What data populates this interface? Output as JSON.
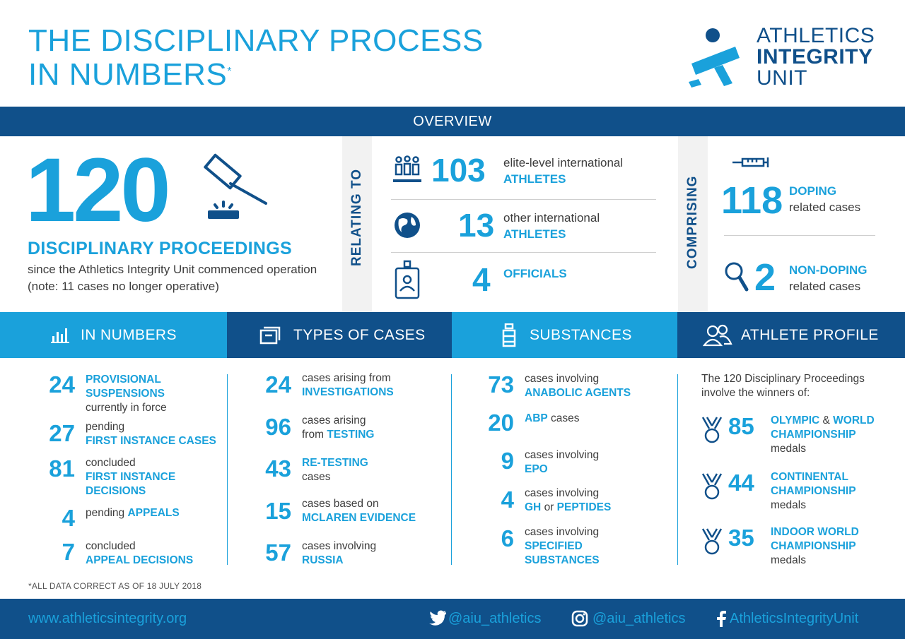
{
  "header": {
    "title_line1": "THE DISCIPLINARY PROCESS",
    "title_line2": "IN NUMBERS",
    "title_mark": "*",
    "logo_line1": "ATHLETICS",
    "logo_line2": "INTEGRITY",
    "logo_line3": "UNIT"
  },
  "overview": {
    "label": "OVERVIEW",
    "total": "120",
    "total_label": "DISCIPLINARY PROCEEDINGS",
    "total_desc": "since the Athletics Integrity Unit commenced operation (note: 11 cases no longer operative)",
    "relating_label": "RELATING TO",
    "relating": [
      {
        "icon": "athletes-icon",
        "number": "103",
        "line1": "elite-level international",
        "line2": "ATHLETES"
      },
      {
        "icon": "globe-icon",
        "number": "13",
        "line1": "other international",
        "line2": "ATHLETES"
      },
      {
        "icon": "id-badge-icon",
        "number": "4",
        "line1": "",
        "line2": "OFFICIALS"
      }
    ],
    "comprising_label": "COMPRISING",
    "comprising": [
      {
        "icon": "syringe-icon",
        "number": "118",
        "line1": "DOPING",
        "line2": "related cases"
      },
      {
        "icon": "magnifier-icon",
        "number": "2",
        "line1": "NON-DOPING",
        "line2": "related cases"
      }
    ]
  },
  "sections": {
    "in_numbers": "IN NUMBERS",
    "types": "TYPES OF CASES",
    "substances": "SUBSTANCES",
    "profile": "ATHLETE PROFILE"
  },
  "in_numbers": [
    {
      "number": "24",
      "a": "PROVISIONAL",
      "b": "SUSPENSIONS",
      "c": "currently in force"
    },
    {
      "number": "27",
      "a": "pending",
      "b": "FIRST INSTANCE CASES"
    },
    {
      "number": "81",
      "a": "concluded",
      "b": "FIRST INSTANCE",
      "c": "DECISIONS"
    },
    {
      "number": "4",
      "a": "pending",
      "b": "APPEALS"
    },
    {
      "number": "7",
      "a": "concluded",
      "b": "APPEAL DECISIONS"
    }
  ],
  "types": [
    {
      "number": "24",
      "a": "cases arising from",
      "b": "INVESTIGATIONS"
    },
    {
      "number": "96",
      "a": "cases arising",
      "a2": "from",
      "b": "TESTING"
    },
    {
      "number": "43",
      "a": "RE-TESTING",
      "b": "cases"
    },
    {
      "number": "15",
      "a": "cases based on",
      "b": "MCLAREN EVIDENCE"
    },
    {
      "number": "57",
      "a": "cases involving",
      "b": "RUSSIA"
    }
  ],
  "substances": [
    {
      "number": "73",
      "a": "cases involving",
      "b": "ANABOLIC AGENTS"
    },
    {
      "number": "20",
      "a": "ABP",
      "a2": "cases"
    },
    {
      "number": "9",
      "a": "cases involving",
      "b": "EPO"
    },
    {
      "number": "4",
      "a": "cases involving",
      "b": "GH",
      "or": "or",
      "c": "PEPTIDES"
    },
    {
      "number": "6",
      "a": "cases involving",
      "b": "SPECIFIED",
      "c": "SUBSTANCES"
    }
  ],
  "profile": {
    "intro1": "The 120 Disciplinary Proceedings",
    "intro2": "involve the winners of:",
    "items": [
      {
        "number": "85",
        "a": "OLYMPIC",
        "amp": "&",
        "a2": "WORLD",
        "b": "CHAMPIONSHIP",
        "c": "medals"
      },
      {
        "number": "44",
        "a": "CONTINENTAL",
        "b": "CHAMPIONSHIP",
        "c": "medals"
      },
      {
        "number": "35",
        "a": "INDOOR WORLD",
        "b": "CHAMPIONSHIP",
        "c": "medals"
      }
    ]
  },
  "note": "*ALL DATA CORRECT AS OF 18 JULY 2018",
  "footer": {
    "website": "www.athleticsintegrity.org",
    "twitter": "@aiu_athletics",
    "instagram": "@aiu_athletics",
    "facebook": "AthleticsIntegrityUnit"
  },
  "colors": {
    "light_blue": "#1aa1db",
    "navy": "#10508a"
  }
}
